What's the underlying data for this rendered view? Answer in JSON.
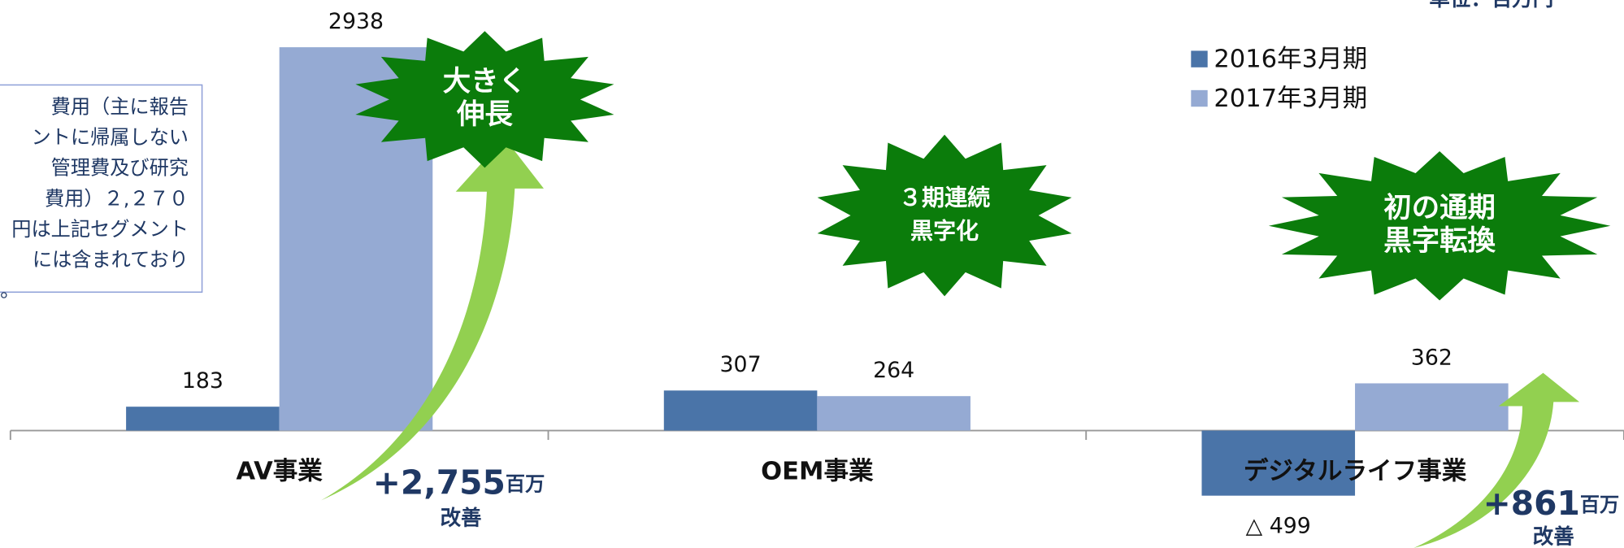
{
  "chart_data": {
    "type": "bar",
    "unit": "単位：百万円",
    "categories": [
      "AV事業",
      "OEM事業",
      "デジタルライフ事業"
    ],
    "series": [
      {
        "name": "2016年3月期",
        "color": "#4a74a8",
        "values": [
          183,
          307,
          -499
        ],
        "value_labels": [
          "183",
          "307",
          "△ 499"
        ]
      },
      {
        "name": "2017年3月期",
        "color": "#95aad3",
        "values": [
          2938,
          264,
          362
        ]
      }
    ],
    "ylim": [
      -900,
      3300
    ],
    "note_lines": [
      "費用（主に報告",
      "ントに帰属しない",
      "管理費及び研究",
      "費用）２,２７０",
      "円は上記セグメント",
      "には含まれており",
      "。"
    ],
    "annotations": [
      {
        "lines": [
          "大きく",
          "伸長"
        ]
      },
      {
        "lines": [
          "３期連続",
          "黒字化"
        ]
      },
      {
        "lines": [
          "初の通期",
          "黒字転換"
        ]
      }
    ],
    "improvements": [
      {
        "value": "+2,755",
        "unit": "百万",
        "note": "改善"
      },
      {
        "value": "+861",
        "unit": "百万",
        "note": "改善"
      }
    ]
  }
}
